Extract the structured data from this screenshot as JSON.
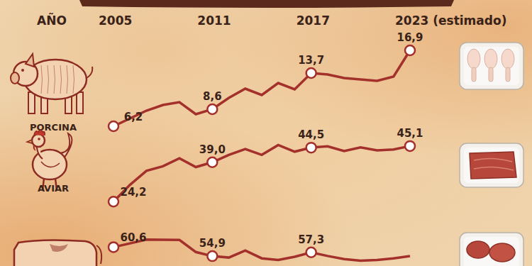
{
  "chart_data": [
    {
      "type": "line",
      "title": "PORCINA",
      "xlabel": "AÑO",
      "x": [
        2005,
        2006,
        2007,
        2008,
        2009,
        2010,
        2011,
        2012,
        2013,
        2014,
        2015,
        2016,
        2017,
        2018,
        2019,
        2020,
        2021,
        2022,
        2023
      ],
      "xlim": [
        2005,
        2023
      ],
      "xticks": [
        2005,
        2011,
        2017,
        {
          "value": 2023,
          "label": "2023 (estimado)"
        }
      ],
      "ylim": [
        4,
        18
      ],
      "tick_labels": "x",
      "values": [
        6.2,
        7.3,
        8.4,
        9.2,
        9.6,
        7.9,
        8.6,
        10.2,
        11.5,
        10.6,
        12.3,
        11.4,
        13.7,
        13.5,
        13.0,
        12.8,
        12.6,
        13.2,
        16.9
      ],
      "value_labels": [
        "6,2",
        null,
        null,
        null,
        null,
        null,
        "8,6",
        null,
        null,
        null,
        null,
        null,
        "13,7",
        null,
        null,
        null,
        null,
        null,
        "16,9"
      ],
      "data_labels": true,
      "color": "#a3302b",
      "marker": "circle"
    },
    {
      "type": "line",
      "title": "AVIAR",
      "x": [
        2005,
        2006,
        2007,
        2008,
        2009,
        2010,
        2011,
        2012,
        2013,
        2014,
        2015,
        2016,
        2017,
        2018,
        2019,
        2020,
        2021,
        2022,
        2023
      ],
      "xlim": [
        2005,
        2023
      ],
      "ylim": [
        20,
        48
      ],
      "tick_labels": false,
      "values": [
        24.2,
        30.5,
        35.8,
        37.5,
        40.5,
        37.2,
        39.0,
        41.8,
        44.0,
        41.8,
        45.5,
        43.0,
        44.5,
        45.0,
        43.2,
        44.6,
        43.5,
        43.8,
        45.1
      ],
      "value_labels": [
        "24,2",
        null,
        null,
        null,
        null,
        null,
        "39,0",
        null,
        null,
        null,
        null,
        null,
        "44,5",
        null,
        null,
        null,
        null,
        null,
        "45,1"
      ],
      "data_labels": true,
      "color": "#a3302b",
      "marker": "circle"
    },
    {
      "type": "line",
      "x": [
        2005,
        2006,
        2007,
        2008,
        2009,
        2010,
        2011,
        2012,
        2013,
        2014,
        2015,
        2016,
        2017,
        2018,
        2019,
        2020,
        2021,
        2022,
        2023
      ],
      "xlim": [
        2005,
        2023
      ],
      "ylim": [
        50,
        68
      ],
      "tick_labels": false,
      "values": [
        60.6,
        63.0,
        65.4,
        65.3,
        65.2,
        57.5,
        54.9,
        54.0,
        58.5,
        53.5,
        52.5,
        54.5,
        57.3,
        55.0,
        53.0,
        52.0,
        52.5,
        53.5,
        55.0
      ],
      "value_labels": [
        "60,6",
        null,
        null,
        null,
        null,
        null,
        "54,9",
        null,
        null,
        null,
        null,
        null,
        "57,3",
        null,
        null,
        null,
        null,
        null,
        null
      ],
      "data_labels": true,
      "color": "#a3302b",
      "marker": "circle"
    }
  ]
}
